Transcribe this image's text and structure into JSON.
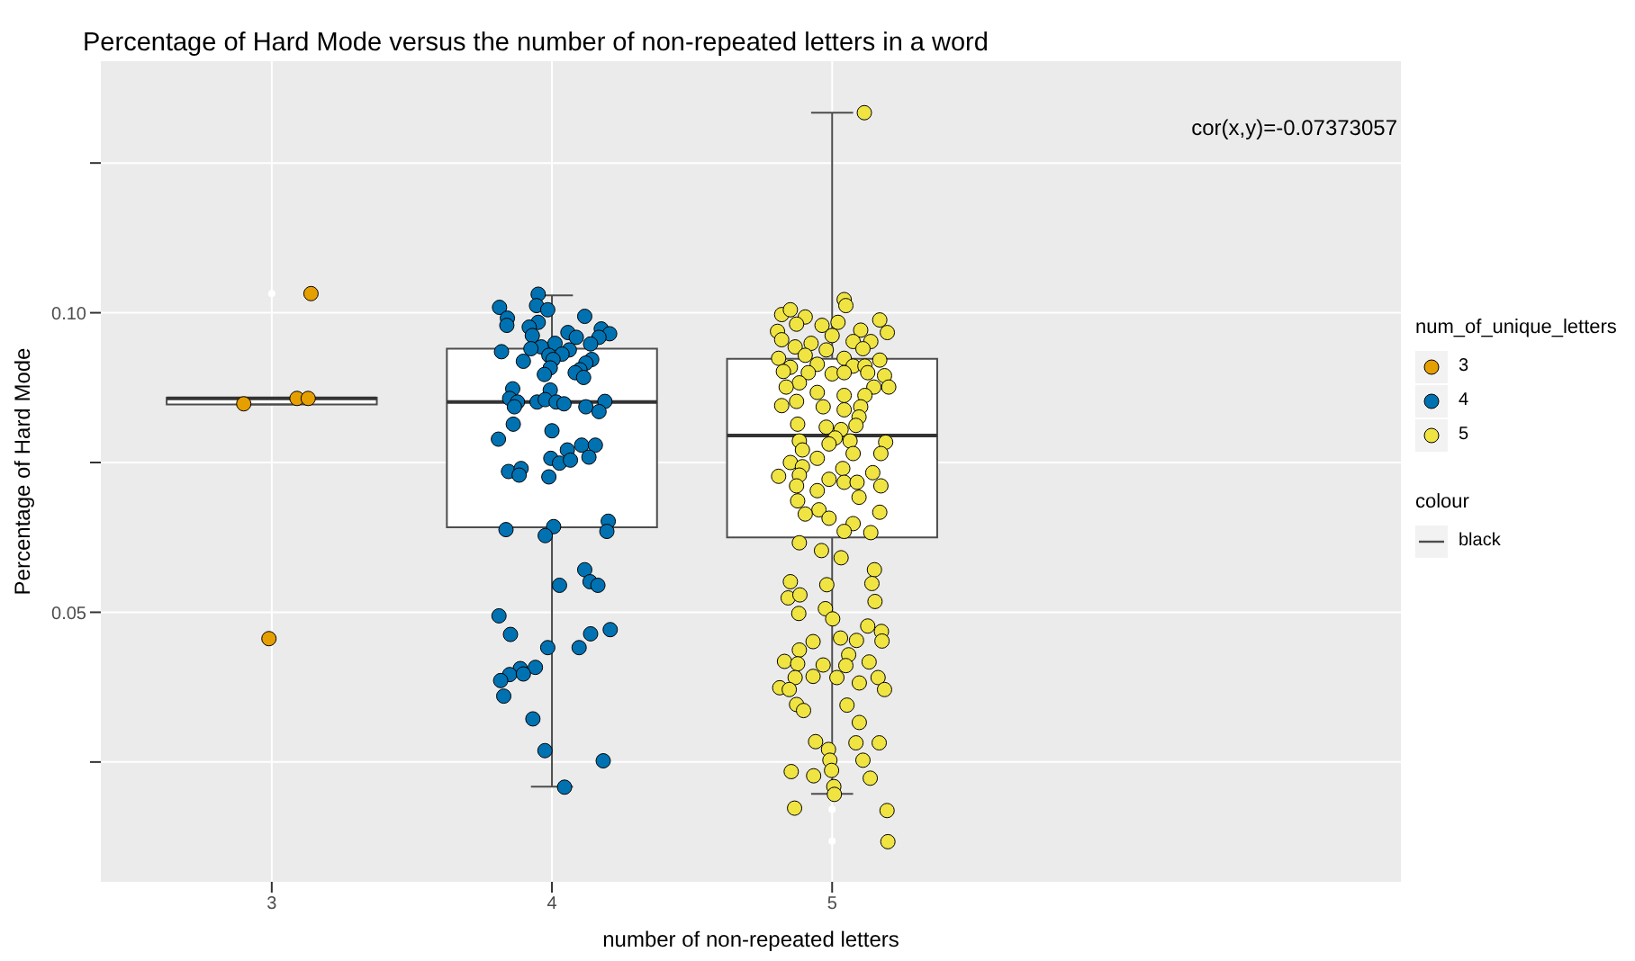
{
  "chart_data": {
    "type": "box",
    "title": "Percentage of Hard Mode versus the number of non-repeated letters in a word",
    "xlabel": "number of non-repeated letters",
    "ylabel": "Percentage of Hard Mode",
    "legend_title": "num_of_unique_letters",
    "annotations": [
      "cor(x,y)=-0.07373057",
      "colour"
    ],
    "xlim": [
      2.39,
      7.03
    ],
    "xticks": [
      3,
      4,
      5
    ],
    "ylim": [
      0.005,
      0.142
    ],
    "yticks": [
      {
        "value": 0.025,
        "label": null
      },
      {
        "value": 0.05,
        "label": "0.05"
      },
      {
        "value": 0.075,
        "label": null
      },
      {
        "value": 0.1,
        "label": "0.10"
      },
      {
        "value": 0.125,
        "label": null
      }
    ],
    "grid": true,
    "legend": "right",
    "marker": "circle",
    "series": [
      {
        "name": "black",
        "color": "#4d4d4d",
        "x": [
          3,
          4,
          5
        ],
        "boxes": [
          {
            "low": 0.0847,
            "q1": 0.0847,
            "median": 0.0857,
            "q3": 0.0858,
            "high": 0.0858,
            "outliers": [
              0.1032
            ]
          },
          {
            "low": 0.0209,
            "q1": 0.0642,
            "median": 0.0851,
            "q3": 0.094,
            "high": 0.1029
          },
          {
            "low": 0.0197,
            "q1": 0.0625,
            "median": 0.0795,
            "q3": 0.0923,
            "high": 0.1334,
            "outliers": [
              0.0171,
              0.0118
            ]
          }
        ]
      },
      {
        "type": "scatter",
        "name": "3",
        "color": "#e69f00",
        "x": [
          3.14,
          2.9,
          3.09,
          3.13,
          2.99
        ],
        "values": [
          0.1032,
          0.0848,
          0.0857,
          0.0857,
          0.0456
        ]
      },
      {
        "type": "scatter",
        "name": "4",
        "color": "#0072b2",
        "x": [
          3.951,
          3.813,
          3.945,
          3.985,
          3.841,
          3.839,
          4.117,
          3.951,
          3.919,
          3.93,
          4.057,
          4.087,
          4.176,
          4.206,
          4.168,
          4.138,
          4.011,
          3.962,
          3.925,
          3.82,
          4.062,
          4.036,
          3.989,
          4.004,
          3.898,
          4.142,
          4.121,
          3.994,
          4.1,
          4.083,
          3.973,
          4.113,
          3.86,
          3.994,
          3.849,
          3.877,
          3.947,
          3.976,
          4.015,
          4.043,
          3.866,
          4.121,
          4.189,
          4.168,
          3.862,
          3.809,
          4.0,
          4.106,
          4.155,
          4.055,
          3.996,
          4.027,
          4.066,
          4.132,
          3.845,
          3.89,
          3.883,
          3.989,
          3.836,
          4.006,
          3.976,
          4.201,
          4.196,
          4.117,
          4.027,
          4.136,
          4.164,
          3.811,
          3.852,
          4.138,
          4.208,
          3.985,
          4.097,
          3.887,
          3.941,
          3.849,
          3.898,
          3.817,
          3.828,
          3.932,
          3.975,
          4.183,
          4.045
        ],
        "values": [
          0.1031,
          0.1009,
          0.1012,
          0.1005,
          0.0991,
          0.0979,
          0.0994,
          0.0984,
          0.0976,
          0.0962,
          0.0967,
          0.0959,
          0.0973,
          0.0965,
          0.0959,
          0.0948,
          0.0949,
          0.0943,
          0.094,
          0.0935,
          0.0938,
          0.0931,
          0.0929,
          0.0922,
          0.0919,
          0.0922,
          0.0916,
          0.0908,
          0.0905,
          0.09,
          0.0897,
          0.0892,
          0.0873,
          0.0871,
          0.0857,
          0.0851,
          0.0851,
          0.0855,
          0.0851,
          0.0848,
          0.0843,
          0.0843,
          0.0852,
          0.0835,
          0.0814,
          0.0789,
          0.0803,
          0.0779,
          0.0779,
          0.0771,
          0.0757,
          0.0749,
          0.0754,
          0.0759,
          0.0735,
          0.074,
          0.0729,
          0.0726,
          0.0638,
          0.0643,
          0.0628,
          0.0652,
          0.0635,
          0.0571,
          0.0545,
          0.0551,
          0.0545,
          0.0494,
          0.0463,
          0.0464,
          0.0471,
          0.0441,
          0.0441,
          0.0406,
          0.0408,
          0.0396,
          0.0397,
          0.0386,
          0.036,
          0.0322,
          0.0269,
          0.0252,
          0.0208
        ]
      },
      {
        "type": "scatter",
        "name": "5",
        "color": "#f0e442",
        "x": [
          5.115,
          5.043,
          5.049,
          4.82,
          4.851,
          4.904,
          5.17,
          4.805,
          4.873,
          4.964,
          5.021,
          5.102,
          5.197,
          4.82,
          4.925,
          5.0,
          5.075,
          5.138,
          4.868,
          4.979,
          5.11,
          4.809,
          4.904,
          5.043,
          5.17,
          4.851,
          4.947,
          5.075,
          5.117,
          4.826,
          4.915,
          5.0,
          5.043,
          5.127,
          5.187,
          4.883,
          4.836,
          5.149,
          5.202,
          4.947,
          5.043,
          5.117,
          4.82,
          4.873,
          4.968,
          5.043,
          5.102,
          5.096,
          4.877,
          4.979,
          5.032,
          5.085,
          4.883,
          5.011,
          5.064,
          5.191,
          4.894,
          4.989,
          5.075,
          5.174,
          4.851,
          4.947,
          4.894,
          5.038,
          4.809,
          4.883,
          4.989,
          5.145,
          4.873,
          4.947,
          5.043,
          5.174,
          5.089,
          4.877,
          4.953,
          4.904,
          5.096,
          5.17,
          4.989,
          5.075,
          5.043,
          5.138,
          4.883,
          4.962,
          5.032,
          5.151,
          4.851,
          4.981,
          5.142,
          4.843,
          4.885,
          5.153,
          4.881,
          4.976,
          5.002,
          5.127,
          5.176,
          5.03,
          5.087,
          5.178,
          4.932,
          4.883,
          5.059,
          4.83,
          4.877,
          4.968,
          5.049,
          5.132,
          4.868,
          4.932,
          5.017,
          5.097,
          5.164,
          4.813,
          4.847,
          5.187,
          4.873,
          4.898,
          5.053,
          5.097,
          4.941,
          5.085,
          5.168,
          4.987,
          4.992,
          5.11,
          4.854,
          4.934,
          4.998,
          5.136,
          5.006,
          5.008,
          4.866,
          5.196,
          5.199
        ],
        "values": [
          0.1334,
          0.1022,
          0.1012,
          0.0997,
          0.1005,
          0.0993,
          0.0988,
          0.0969,
          0.0981,
          0.0979,
          0.0984,
          0.0971,
          0.0967,
          0.0955,
          0.0949,
          0.0962,
          0.0952,
          0.0952,
          0.0943,
          0.0938,
          0.094,
          0.0924,
          0.0929,
          0.0924,
          0.0921,
          0.0909,
          0.0914,
          0.0911,
          0.0911,
          0.0902,
          0.09,
          0.0898,
          0.09,
          0.09,
          0.0895,
          0.0883,
          0.0876,
          0.0876,
          0.0876,
          0.0867,
          0.0862,
          0.0862,
          0.0845,
          0.0852,
          0.0843,
          0.0838,
          0.0843,
          0.0826,
          0.0814,
          0.0809,
          0.0805,
          0.0812,
          0.0786,
          0.0791,
          0.0786,
          0.0784,
          0.0771,
          0.0781,
          0.0765,
          0.0765,
          0.075,
          0.0757,
          0.0743,
          0.074,
          0.0727,
          0.0729,
          0.0722,
          0.0733,
          0.0711,
          0.0703,
          0.0717,
          0.0711,
          0.0717,
          0.0686,
          0.0671,
          0.0664,
          0.0692,
          0.0667,
          0.0657,
          0.0648,
          0.0635,
          0.0633,
          0.0616,
          0.0603,
          0.0591,
          0.0571,
          0.0551,
          0.0546,
          0.0548,
          0.0524,
          0.0529,
          0.0518,
          0.0498,
          0.0506,
          0.0489,
          0.0477,
          0.0468,
          0.0457,
          0.0453,
          0.0452,
          0.0451,
          0.0437,
          0.0429,
          0.0418,
          0.0414,
          0.0412,
          0.0411,
          0.0417,
          0.0391,
          0.0393,
          0.0391,
          0.0382,
          0.0391,
          0.0374,
          0.0371,
          0.0371,
          0.0346,
          0.0336,
          0.0345,
          0.0316,
          0.0284,
          0.0282,
          0.0282,
          0.0271,
          0.0253,
          0.0253,
          0.0234,
          0.0227,
          0.0236,
          0.0223,
          0.0209,
          0.0196,
          0.0173,
          0.0169,
          0.0117
        ]
      }
    ]
  }
}
